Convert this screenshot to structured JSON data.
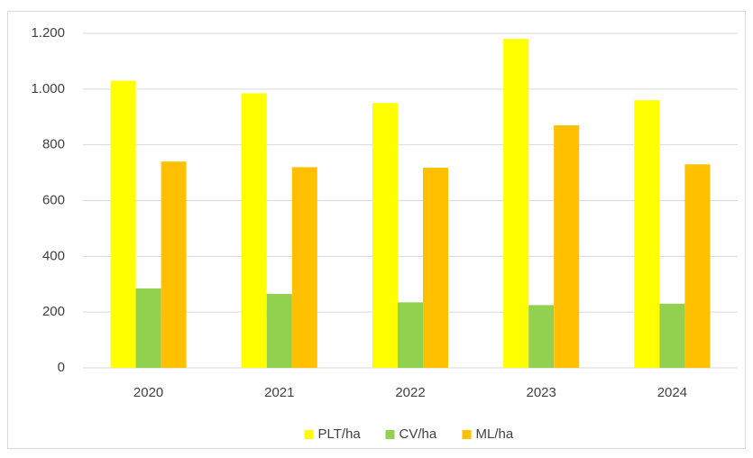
{
  "chart_data": {
    "type": "bar",
    "categories": [
      "2020",
      "2021",
      "2022",
      "2023",
      "2024"
    ],
    "series": [
      {
        "name": "PLT/ha",
        "color": "#ffff00",
        "values": [
          1030,
          985,
          950,
          1180,
          960
        ]
      },
      {
        "name": "CV/ha",
        "color": "#92d050",
        "values": [
          285,
          265,
          235,
          225,
          230
        ]
      },
      {
        "name": "ML/ha",
        "color": "#ffc000",
        "values": [
          740,
          720,
          718,
          870,
          730
        ]
      }
    ],
    "ylim": [
      0,
      1200
    ],
    "yticks": [
      0,
      200,
      400,
      600,
      800,
      {
        "value": 1000,
        "label": "1.000"
      },
      {
        "value": 1200,
        "label": "1.200"
      }
    ],
    "grid": true,
    "legend": "bottom"
  }
}
